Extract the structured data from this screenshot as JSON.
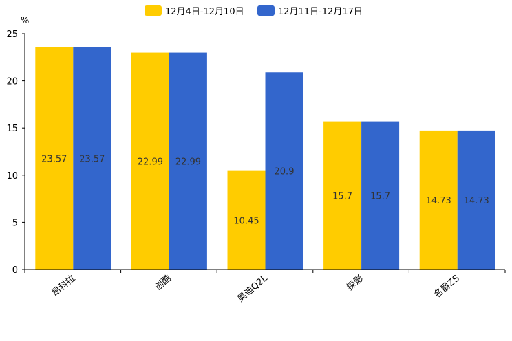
{
  "chart_data": {
    "type": "bar",
    "title": "",
    "xlabel": "",
    "ylabel": "%",
    "ylim": [
      0,
      25
    ],
    "yticks": [
      0,
      5,
      10,
      15,
      20,
      25
    ],
    "categories": [
      "昂科拉",
      "创酷",
      "奥迪Q2L",
      "探影",
      "名爵ZS"
    ],
    "series": [
      {
        "name": "12月4日-12月10日",
        "color": "#FFCC00",
        "values": [
          23.57,
          22.99,
          10.45,
          15.7,
          14.73
        ]
      },
      {
        "name": "12月11日-12月17日",
        "color": "#3366CC",
        "values": [
          23.57,
          22.99,
          20.9,
          15.7,
          14.73
        ]
      }
    ],
    "legend_position": "top-center",
    "grid": false
  }
}
